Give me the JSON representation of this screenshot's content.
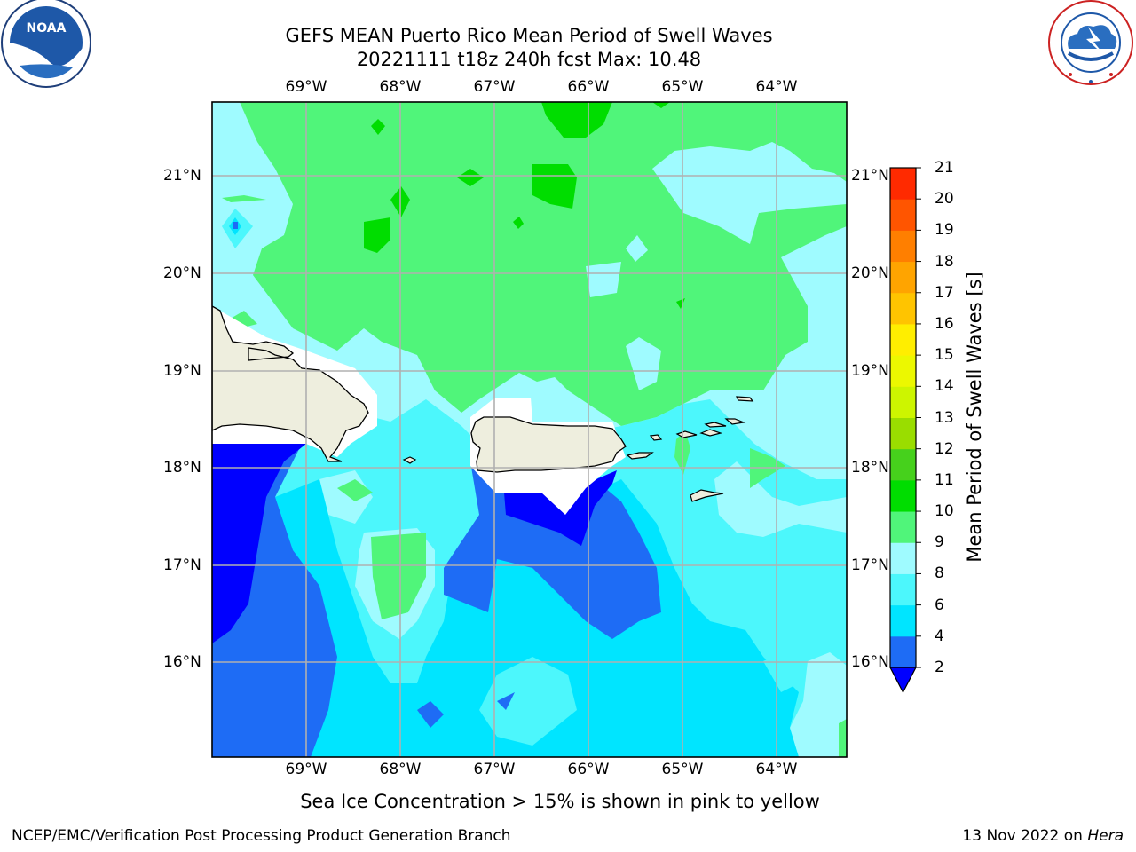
{
  "title_line1": "GEFS MEAN Puerto Rico Mean Period of Swell Waves",
  "title_line2": "20221111 t18z 240h fcst   Max: 10.48",
  "lon_labels": [
    "69°W",
    "68°W",
    "67°W",
    "66°W",
    "65°W",
    "64°W"
  ],
  "lat_labels": [
    "21°N",
    "20°N",
    "19°N",
    "18°N",
    "17°N",
    "16°N"
  ],
  "colorbar": {
    "title": "Mean Period of Swell Waves [s]",
    "ticks": [
      "2",
      "4",
      "6",
      "8",
      "9",
      "10",
      "11",
      "12",
      "13",
      "14",
      "15",
      "16",
      "17",
      "18",
      "19",
      "20",
      "21"
    ],
    "colors": [
      "#0000ff",
      "#1e6cf5",
      "#00e5ff",
      "#4cf7fc",
      "#9ffbff",
      "#50f57a",
      "#00dd00",
      "#46d11c",
      "#9add00",
      "#cdf500",
      "#ecf800",
      "#ffee00",
      "#ffc400",
      "#ffa400",
      "#ff7f00",
      "#ff5500",
      "#ff2a00",
      "#ff0000"
    ]
  },
  "note": "Sea Ice Concentration > 15% is shown in pink to yellow",
  "footer_left": "NCEP/EMC/Verification Post Processing Product Generation Branch",
  "footer_date": "13 Nov 2022 on ",
  "footer_machine": "Hera",
  "logos": {
    "left": "NOAA",
    "right": "NATIONAL WEATHER SERVICE"
  },
  "map_colors": {
    "land": "#eeeede",
    "grid": "#b0b0b0",
    "frame": "#000000"
  }
}
